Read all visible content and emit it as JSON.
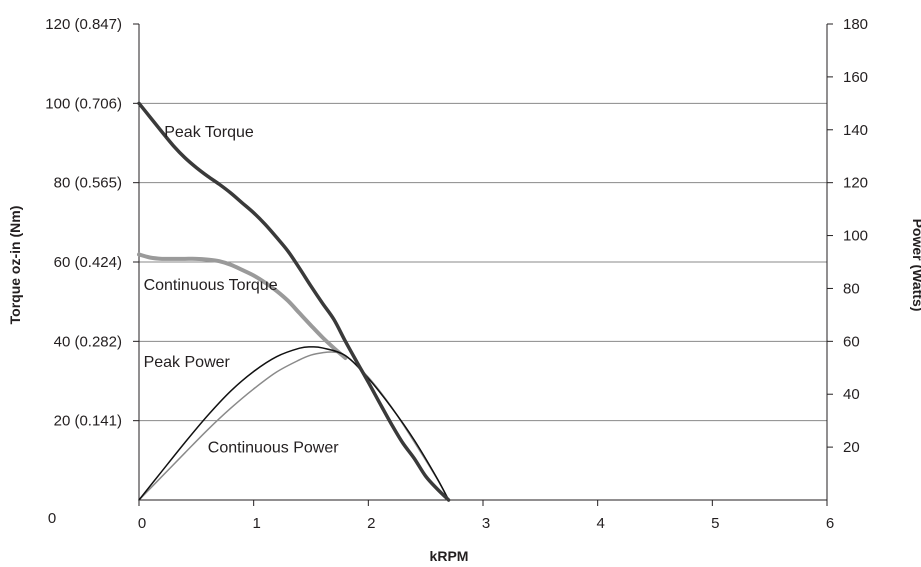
{
  "chart_data": {
    "type": "line",
    "title": "",
    "xlabel": "kRPM",
    "ylabel_left": "Torque oz-in (Nm)",
    "ylabel_right": "Power (Watts)",
    "xlim": [
      0,
      6
    ],
    "ylim_left": [
      0,
      120
    ],
    "ylim_right": [
      0,
      180
    ],
    "grid": "horizontal",
    "x_ticks": [
      "0",
      "1",
      "2",
      "3",
      "4",
      "5",
      "6"
    ],
    "left_ticks": [
      {
        "value": 0,
        "label": "0"
      },
      {
        "value": 20,
        "label": "20 (0.141)"
      },
      {
        "value": 40,
        "label": "40 (0.282)"
      },
      {
        "value": 60,
        "label": "60 (0.424)"
      },
      {
        "value": 80,
        "label": "80 (0.565)"
      },
      {
        "value": 100,
        "label": "100 (0.706)"
      },
      {
        "value": 120,
        "label": "120 (0.847)"
      }
    ],
    "right_ticks": [
      {
        "value": 20,
        "label": "20"
      },
      {
        "value": 40,
        "label": "40"
      },
      {
        "value": 60,
        "label": "60"
      },
      {
        "value": 80,
        "label": "80"
      },
      {
        "value": 100,
        "label": "100"
      },
      {
        "value": 120,
        "label": "120"
      },
      {
        "value": 140,
        "label": "140"
      },
      {
        "value": 160,
        "label": "160"
      },
      {
        "value": 180,
        "label": "180"
      }
    ],
    "series": [
      {
        "name": "Peak Torque",
        "axis": "left",
        "color": "#3a3a3a",
        "width": 3.5,
        "x": [
          0,
          0.1,
          0.2,
          0.3,
          0.4,
          0.5,
          0.6,
          0.7,
          0.8,
          0.9,
          1.0,
          1.1,
          1.2,
          1.3,
          1.4,
          1.5,
          1.6,
          1.7,
          1.8,
          1.9,
          2.0,
          2.1,
          2.2,
          2.3,
          2.4,
          2.5,
          2.6,
          2.7
        ],
        "y": [
          100,
          96.4,
          92.8,
          89.3,
          86.3,
          83.8,
          81.6,
          79.6,
          77.4,
          74.9,
          72.4,
          69.5,
          66.2,
          62.7,
          58.4,
          53.9,
          49.6,
          45.5,
          40.0,
          34.8,
          29.7,
          24.4,
          19.2,
          14.4,
          10.5,
          6.0,
          2.8,
          0
        ]
      },
      {
        "name": "Continuous Torque",
        "axis": "left",
        "color": "#9a9a9a",
        "width": 4,
        "x": [
          0,
          0.1,
          0.2,
          0.3,
          0.4,
          0.5,
          0.6,
          0.7,
          0.8,
          0.9,
          1.0,
          1.1,
          1.2,
          1.3,
          1.4,
          1.5,
          1.6,
          1.7,
          1.8
        ],
        "y": [
          61.9,
          61.1,
          60.8,
          60.8,
          60.8,
          60.8,
          60.6,
          60.2,
          59.3,
          58.0,
          56.6,
          54.8,
          52.7,
          50.2,
          47.1,
          44.0,
          41.0,
          38.3,
          35.8
        ]
      },
      {
        "name": "Peak Power",
        "axis": "right",
        "color": "#111111",
        "width": 1.5,
        "x": [
          0,
          0.2,
          0.4,
          0.6,
          0.8,
          1.0,
          1.2,
          1.4,
          1.5,
          1.6,
          1.8,
          2.0,
          2.2,
          2.4,
          2.6,
          2.7
        ],
        "y": [
          0,
          10.9,
          21.7,
          32.0,
          41.2,
          48.6,
          54.2,
          57.4,
          57.9,
          57.5,
          54.6,
          46.0,
          35.1,
          22.7,
          8.2,
          0
        ]
      },
      {
        "name": "Continuous Power",
        "axis": "right",
        "color": "#8a8a8a",
        "width": 1.5,
        "x": [
          0,
          0.2,
          0.4,
          0.6,
          0.8,
          1.0,
          1.2,
          1.4,
          1.5,
          1.6,
          1.7,
          1.8,
          2.0,
          2.2,
          2.4,
          2.6,
          2.7
        ],
        "y": [
          0,
          8.9,
          17.8,
          26.6,
          34.7,
          42.0,
          48.4,
          53.0,
          54.8,
          55.7,
          55.9,
          54.6,
          46.4,
          35.3,
          22.0,
          8.0,
          0
        ]
      }
    ],
    "annotations": [
      {
        "text": "Peak Torque",
        "x": 0.22,
        "y": 91.5,
        "axis": "left"
      },
      {
        "text": "Continuous Torque",
        "x": 0.04,
        "y": 53,
        "axis": "left"
      },
      {
        "text": "Peak Power",
        "x": 0.04,
        "y": 33.5,
        "axis": "left"
      },
      {
        "text": "Continuous Power",
        "x": 0.6,
        "y": 12,
        "axis": "left"
      }
    ]
  }
}
